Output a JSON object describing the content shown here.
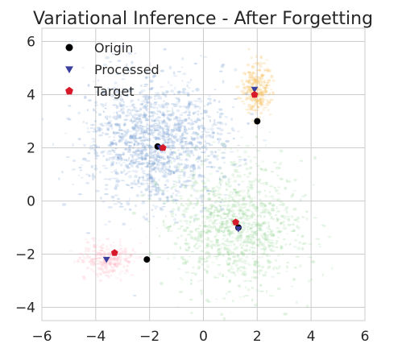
{
  "chart_data": {
    "type": "scatter",
    "title": "Variational Inference - After Forgetting",
    "xlabel": "",
    "ylabel": "",
    "xlim": [
      -6,
      6
    ],
    "ylim": [
      -4.5,
      6.5
    ],
    "xticks": [
      -6,
      -4,
      -2,
      0,
      2,
      4,
      6
    ],
    "yticks": [
      -4,
      -2,
      0,
      2,
      4,
      6
    ],
    "grid": true,
    "legend_position": "top-left",
    "clouds": [
      {
        "color": "#7aa0d2",
        "center": [
          -1.8,
          2.2
        ],
        "spread": [
          1.3,
          1.2
        ],
        "count": 1400,
        "opacity": 0.35
      },
      {
        "color": "#8fd18f",
        "center": [
          1.2,
          -0.9
        ],
        "spread": [
          1.25,
          1.2
        ],
        "count": 1100,
        "opacity": 0.3
      },
      {
        "color": "#f7c060",
        "center": [
          2.0,
          4.2
        ],
        "spread": [
          0.25,
          0.5
        ],
        "count": 260,
        "opacity": 0.4
      },
      {
        "color": "#ffb0c0",
        "center": [
          -3.6,
          -2.2
        ],
        "spread": [
          0.5,
          0.3
        ],
        "count": 260,
        "opacity": 0.3
      }
    ],
    "series": [
      {
        "name": "Origin",
        "marker": "circle",
        "color": "#000000",
        "points": [
          [
            -1.7,
            2.05
          ],
          [
            2.0,
            3.0
          ],
          [
            1.3,
            -1.0
          ],
          [
            -2.1,
            -2.2
          ]
        ]
      },
      {
        "name": "Processed",
        "marker": "triangle-down",
        "color": "#3a3f9e",
        "points": [
          [
            -1.6,
            2.0
          ],
          [
            1.9,
            4.2
          ],
          [
            1.3,
            -1.05
          ],
          [
            -3.6,
            -2.2
          ]
        ]
      },
      {
        "name": "Target",
        "marker": "pentagon",
        "color": "#d7192a",
        "points": [
          [
            -1.5,
            2.0
          ],
          [
            1.9,
            4.0
          ],
          [
            1.2,
            -0.8
          ],
          [
            -3.3,
            -1.95
          ]
        ]
      }
    ]
  }
}
